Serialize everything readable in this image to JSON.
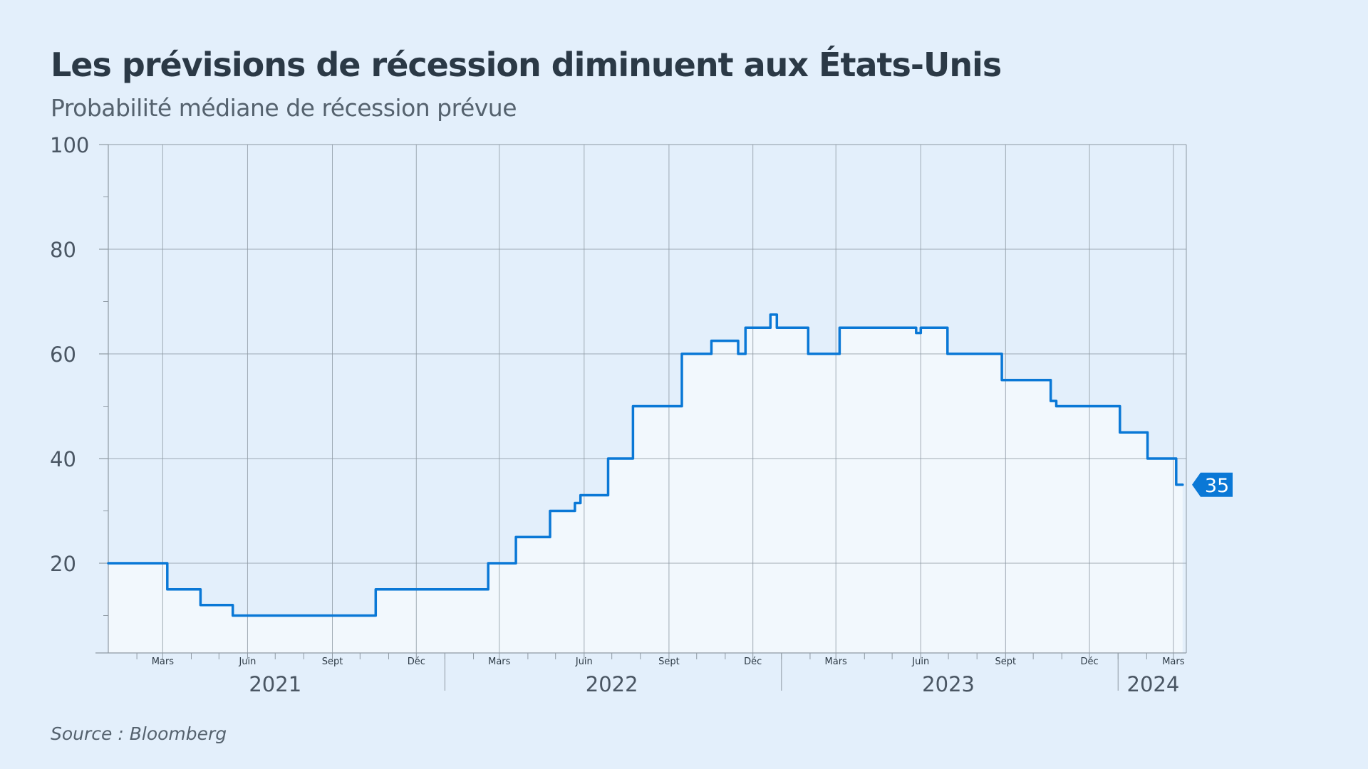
{
  "header": {
    "title": "Les prévisions de récession diminuent aux États-Unis",
    "subtitle": "Probabilité médiane de récession prévue"
  },
  "footer": {
    "source": "Source : Bloomberg"
  },
  "colors": {
    "line": "#0a78d6",
    "area": "#f2f8fd",
    "background": "#e3effb",
    "grid": "#8e99a3",
    "badge": "#0a78d6"
  },
  "chart_data": {
    "type": "line",
    "step": true,
    "title": "Les prévisions de récession diminuent aux États-Unis",
    "subtitle": "Probabilité médiane de récession prévue",
    "xlabel": "",
    "ylabel": "",
    "ylim": [
      0,
      100
    ],
    "xlim": [
      "2021-01-01",
      "2024-03-15"
    ],
    "yticks": [
      20,
      40,
      60,
      80,
      100
    ],
    "grid": true,
    "month_labels": [
      {
        "date": "2021-03-01",
        "label": "Mars"
      },
      {
        "date": "2021-06-01",
        "label": "Juin"
      },
      {
        "date": "2021-09-01",
        "label": "Sept"
      },
      {
        "date": "2021-12-01",
        "label": "Déc"
      },
      {
        "date": "2022-03-01",
        "label": "Mars"
      },
      {
        "date": "2022-06-01",
        "label": "Juin"
      },
      {
        "date": "2022-09-01",
        "label": "Sept"
      },
      {
        "date": "2022-12-01",
        "label": "Déc"
      },
      {
        "date": "2023-03-01",
        "label": "Mars"
      },
      {
        "date": "2023-06-01",
        "label": "Juin"
      },
      {
        "date": "2023-09-01",
        "label": "Sept"
      },
      {
        "date": "2023-12-01",
        "label": "Déc"
      },
      {
        "date": "2024-03-01",
        "label": "Mars"
      }
    ],
    "year_labels": [
      {
        "date": "2021-07-01",
        "label": "2021"
      },
      {
        "date": "2022-07-01",
        "label": "2022"
      },
      {
        "date": "2023-07-01",
        "label": "2023"
      },
      {
        "date": "2024-02-08",
        "label": "2024"
      }
    ],
    "last_value_label": "35",
    "series": [
      {
        "points": [
          [
            "2021-01-01",
            20
          ],
          [
            "2021-03-06",
            15
          ],
          [
            "2021-04-11",
            12
          ],
          [
            "2021-05-16",
            10
          ],
          [
            "2021-10-18",
            15
          ],
          [
            "2022-02-17",
            20
          ],
          [
            "2022-03-19",
            25
          ],
          [
            "2022-04-25",
            30
          ],
          [
            "2022-05-22",
            31.5
          ],
          [
            "2022-05-28",
            33
          ],
          [
            "2022-06-27",
            40
          ],
          [
            "2022-07-24",
            50
          ],
          [
            "2022-09-15",
            60
          ],
          [
            "2022-10-17",
            62.5
          ],
          [
            "2022-11-15",
            60
          ],
          [
            "2022-11-23",
            65
          ],
          [
            "2022-12-20",
            67.5
          ],
          [
            "2022-12-27",
            65
          ],
          [
            "2023-01-30",
            60
          ],
          [
            "2023-03-05",
            65
          ],
          [
            "2023-05-27",
            64
          ],
          [
            "2023-06-01",
            65
          ],
          [
            "2023-06-30",
            60
          ],
          [
            "2023-08-28",
            55
          ],
          [
            "2023-09-10",
            55
          ],
          [
            "2023-10-20",
            51
          ],
          [
            "2023-10-26",
            50
          ],
          [
            "2024-01-03",
            45
          ],
          [
            "2024-02-02",
            40
          ],
          [
            "2024-03-04",
            35
          ],
          [
            "2024-03-11",
            35
          ]
        ]
      }
    ]
  }
}
